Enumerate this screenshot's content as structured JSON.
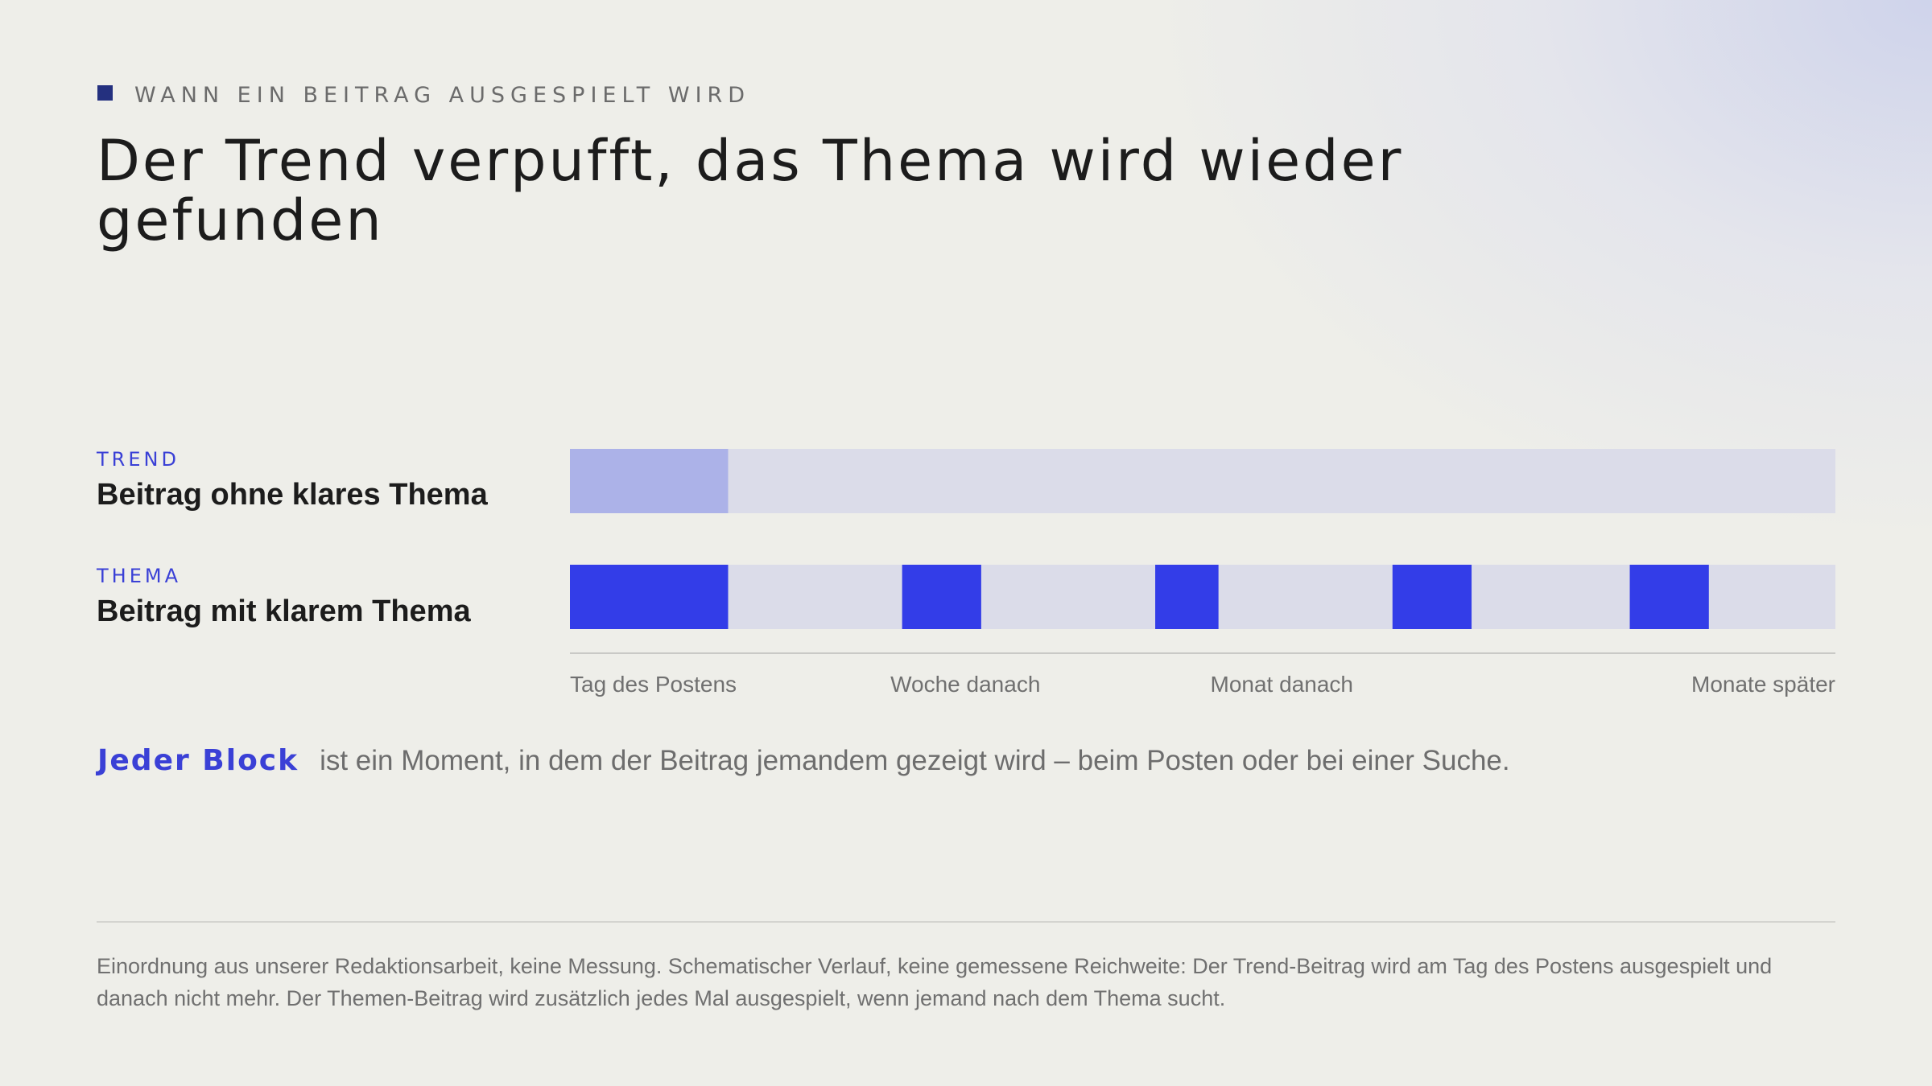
{
  "eyebrow": "WANN EIN BEITRAG AUSGESPIELT WIRD",
  "title": "Der Trend verpufft, das Thema wird wieder gefunden",
  "rows": [
    {
      "tag": "TREND",
      "name": "Beitrag ohne klares Thema"
    },
    {
      "tag": "THEMA",
      "name": "Beitrag mit klarem Thema"
    }
  ],
  "legend": {
    "key": "Jeder Block",
    "text": "ist ein Moment, in dem der Beitrag jemandem gezeigt wird – beim Posten oder bei einer Suche."
  },
  "footnote": "Einordnung aus unserer Redaktionsarbeit, keine Messung. Schematischer Verlauf, keine gemessene Reichweite: Der Trend-Beitrag wird am Tag des Postens ausgespielt und danach nicht mehr. Der Themen-Beitrag wird zusätzlich jedes Mal ausgespielt, wenn jemand nach dem Thema sucht.",
  "colors": {
    "accent": "#3a40d6",
    "block_strong": "#333de8",
    "block_faded": "#acb2e8",
    "track": "#dbdce9",
    "axis": "#c9c9c6",
    "eyebrow_marker": "#24307f"
  },
  "chart_data": {
    "type": "timeline",
    "x_range": [
      0,
      1
    ],
    "x_ticks": [
      {
        "label": "Tag des Postens",
        "x": 0.0
      },
      {
        "label": "Woche danach",
        "x": 0.3125
      },
      {
        "label": "Monat danach",
        "x": 0.5625
      },
      {
        "label": "Monate später",
        "x": 1.0
      }
    ],
    "series": [
      {
        "name": "Beitrag ohne klares Thema",
        "style": "faded",
        "blocks": [
          {
            "start": 0.0,
            "end": 0.125
          }
        ]
      },
      {
        "name": "Beitrag mit klarem Thema",
        "style": "strong",
        "blocks": [
          {
            "start": 0.0,
            "end": 0.125
          },
          {
            "start": 0.2625,
            "end": 0.325
          },
          {
            "start": 0.4625,
            "end": 0.5125
          },
          {
            "start": 0.65,
            "end": 0.7125
          },
          {
            "start": 0.8375,
            "end": 0.9
          }
        ]
      }
    ]
  }
}
